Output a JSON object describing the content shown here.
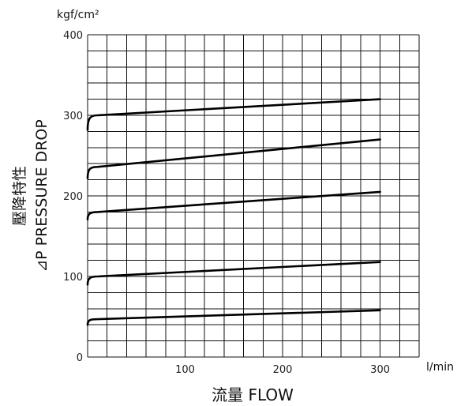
{
  "chart_data": {
    "type": "line",
    "title": "",
    "ylabel_unit": "kgf/cm²",
    "xlabel_unit": "l/min",
    "ylabel_jp": "壓降特性",
    "ylabel_en": "⊿P PRESSURE DROP",
    "xlabel": "流量 FLOW",
    "xlim": [
      0,
      340
    ],
    "ylim": [
      0,
      400
    ],
    "grid": true,
    "x_ticks": [
      100,
      200,
      300
    ],
    "y_ticks": [
      0,
      100,
      200,
      300,
      400
    ],
    "x_tick_labels": [
      "100",
      "200",
      "300"
    ],
    "y_tick_labels": [
      "0",
      "100",
      "200",
      "300",
      "400"
    ],
    "series": [
      {
        "x": [
          0,
          3,
          10,
          300
        ],
        "y": [
          282,
          297,
          300,
          320
        ]
      },
      {
        "x": [
          0,
          3,
          10,
          300
        ],
        "y": [
          222,
          234,
          236,
          270
        ]
      },
      {
        "x": [
          0,
          3,
          10,
          300
        ],
        "y": [
          171,
          178,
          180,
          205
        ]
      },
      {
        "x": [
          0,
          3,
          10,
          300
        ],
        "y": [
          90,
          98,
          100,
          118
        ]
      },
      {
        "x": [
          0,
          3,
          10,
          300
        ],
        "y": [
          40,
          46,
          47,
          58
        ]
      }
    ]
  }
}
